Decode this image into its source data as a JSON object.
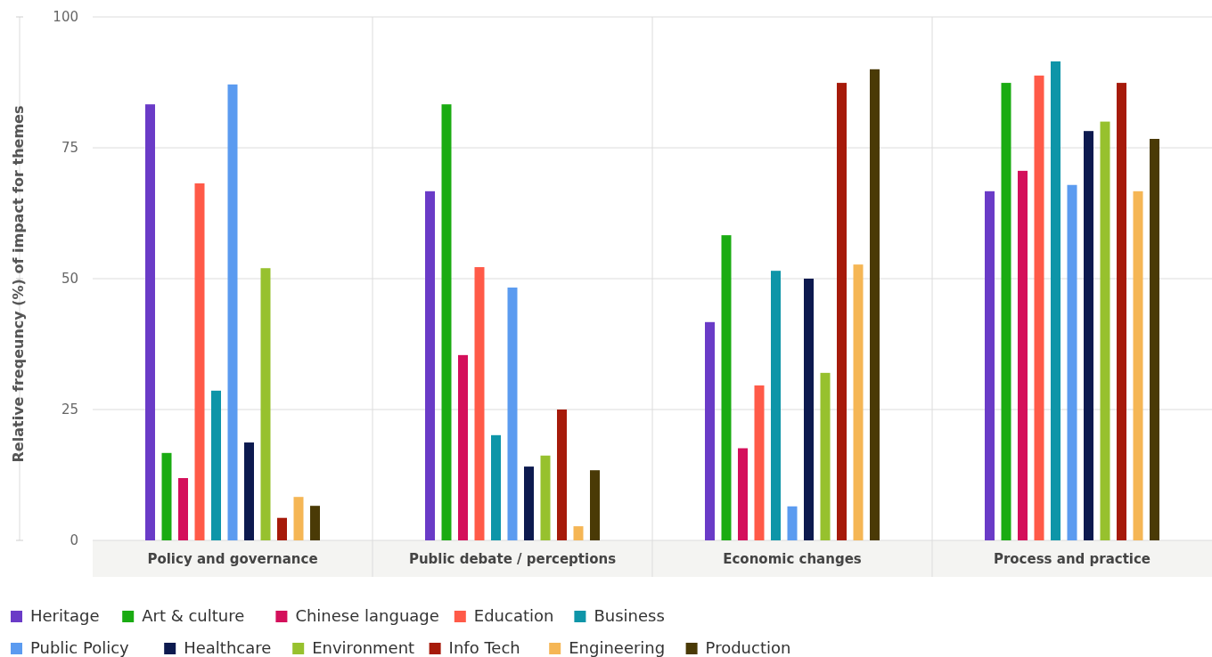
{
  "chart_data": {
    "type": "bar",
    "ylabel": "Relative freqeuncy (%) of impact for themes",
    "categories": [
      "Policy and governance",
      "Public debate / perceptions",
      "Economic changes",
      "Process and practice"
    ],
    "ylim": [
      0,
      100
    ],
    "yticks": [
      0,
      25,
      50,
      75,
      100
    ],
    "grid": "y",
    "legend": "bottom",
    "series": [
      {
        "name": "Heritage",
        "color": "#6a3bc7",
        "values": [
          83.3,
          66.7,
          41.7,
          66.7
        ]
      },
      {
        "name": "Art & culture",
        "color": "#1aab12",
        "values": [
          16.7,
          83.3,
          58.3,
          87.4
        ]
      },
      {
        "name": "Chinese language",
        "color": "#d4105b",
        "values": [
          11.9,
          35.4,
          17.6,
          70.6
        ]
      },
      {
        "name": "Education",
        "color": "#ff5a48",
        "values": [
          68.2,
          52.2,
          29.6,
          88.8
        ]
      },
      {
        "name": "Business",
        "color": "#0e95a8",
        "values": [
          28.6,
          20.1,
          51.5,
          91.5
        ]
      },
      {
        "name": "Public Policy",
        "color": "#5b9bf0",
        "values": [
          87.1,
          48.3,
          6.5,
          67.9
        ]
      },
      {
        "name": "Healthcare",
        "color": "#0d1a4f",
        "values": [
          18.7,
          14.1,
          50,
          78.2
        ]
      },
      {
        "name": "Environment",
        "color": "#97c12e",
        "values": [
          52,
          16.2,
          32,
          80
        ]
      },
      {
        "name": "Info Tech",
        "color": "#a61a0a",
        "values": [
          4.3,
          25,
          87.4,
          87.4
        ]
      },
      {
        "name": "Engineering",
        "color": "#f5b655",
        "values": [
          8.3,
          2.7,
          52.7,
          66.7
        ]
      },
      {
        "name": "Production",
        "color": "#4a3a06",
        "values": [
          6.6,
          13.4,
          90,
          76.7
        ]
      }
    ]
  }
}
